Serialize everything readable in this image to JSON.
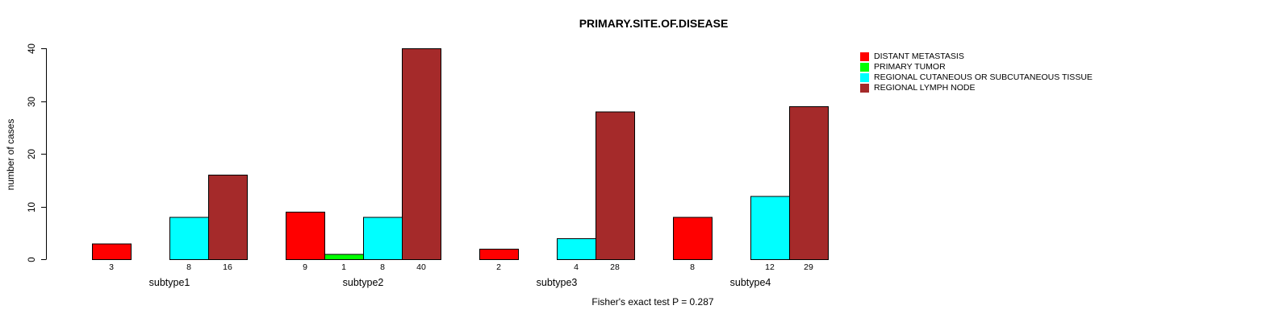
{
  "figure": {
    "kind": "r-barplot-screenshot"
  },
  "chart_data": {
    "type": "bar",
    "grouped": true,
    "title": "PRIMARY.SITE.OF.DISEASE",
    "xlabel": "",
    "ylabel": "number of cases",
    "annotation": "Fisher's exact test P = 0.287",
    "categories": [
      "subtype1",
      "subtype2",
      "subtype3",
      "subtype4"
    ],
    "series": [
      {
        "name": "DISTANT METASTASIS",
        "color": "#ff0000",
        "values": [
          3,
          9,
          2,
          8
        ]
      },
      {
        "name": "PRIMARY TUMOR",
        "color": "#00ff00",
        "values": [
          0,
          1,
          0,
          0
        ]
      },
      {
        "name": "REGIONAL CUTANEOUS OR SUBCUTANEOUS TISSUE",
        "color": "#00ffff",
        "values": [
          8,
          8,
          4,
          12
        ]
      },
      {
        "name": "REGIONAL LYMPH NODE",
        "color": "#a52a2a",
        "values": [
          16,
          40,
          28,
          29
        ]
      }
    ],
    "ylim": [
      0,
      40
    ],
    "yticks": [
      0,
      10,
      20,
      30,
      40
    ],
    "grid": false,
    "bar_borders": "#000000",
    "axis_color": "#000000",
    "bar_value_labels": true,
    "zero_value_bars_hidden": true,
    "legend_position": "top-right-inside",
    "y_tick_labels_rotated": true
  }
}
